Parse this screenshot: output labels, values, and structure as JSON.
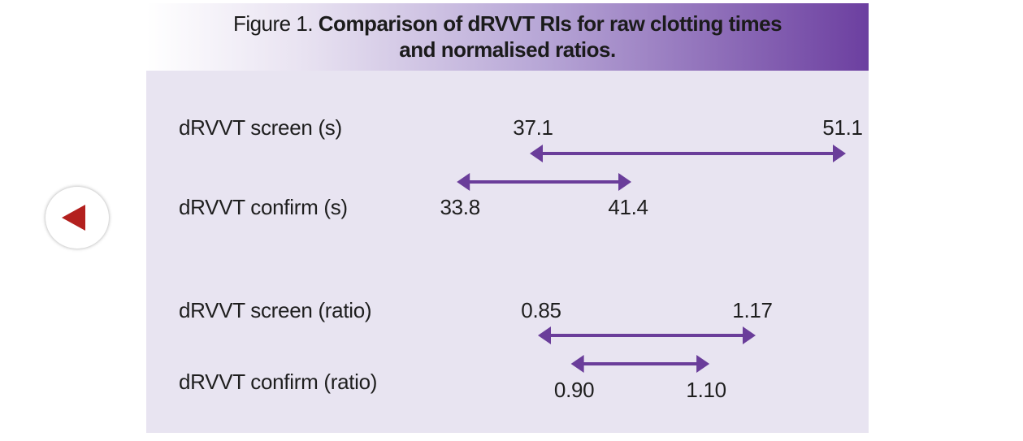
{
  "figure": {
    "label": "Figure 1.",
    "title_line1": "Comparison of dRVVT RIs for raw clotting times",
    "title_line2": "and normalised ratios."
  },
  "colors": {
    "arrow": "#6a3d9a",
    "panel": "#e8e4f1",
    "header_end": "#6c3fa0",
    "nav_arrow": "#b3201e"
  },
  "nav": {
    "icon": "left-triangle-icon"
  },
  "chart_data": {
    "type": "range",
    "groups": [
      {
        "unit": "s",
        "rows": [
          {
            "label": "dRVVT screen (s)",
            "low": 37.1,
            "high": 51.1,
            "low_label": "37.1",
            "high_label": "51.1",
            "label_position": "above"
          },
          {
            "label": "dRVVT confirm (s)",
            "low": 33.8,
            "high": 41.4,
            "low_label": "33.8",
            "high_label": "41.4",
            "label_position": "below"
          }
        ]
      },
      {
        "unit": "ratio",
        "rows": [
          {
            "label": "dRVVT screen (ratio)",
            "low": 0.85,
            "high": 1.17,
            "low_label": "0.85",
            "high_label": "1.17",
            "label_position": "above"
          },
          {
            "label": "dRVVT confirm (ratio)",
            "low": 0.9,
            "high": 1.1,
            "low_label": "0.90",
            "high_label": "1.10",
            "label_position": "below"
          }
        ]
      }
    ]
  }
}
